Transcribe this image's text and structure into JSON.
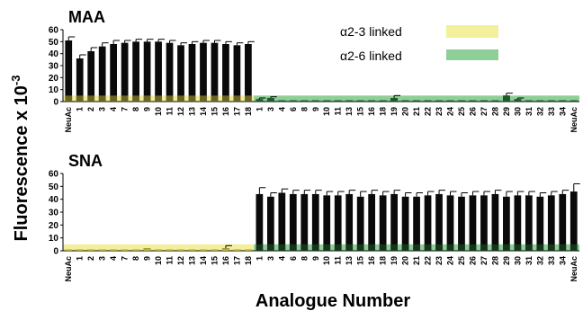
{
  "chart_data": {
    "type": "bar",
    "ylabel": "Fluorescence x 10",
    "ylabel_exp": "-3",
    "xlabel": "Analogue Number",
    "legend": [
      {
        "label": "α2-3 linked",
        "color": "#f3ef9a"
      },
      {
        "label": "α2-6 linked",
        "color": "#8fcf97"
      }
    ],
    "colors": {
      "bar": "#000000",
      "alpha23_band": "#f3ef9a",
      "alpha26_band": "#8fcf97",
      "alpha23_bar": "#b8ad3c",
      "alpha26_bar": "#1f5a2a"
    },
    "ylim": [
      0,
      60
    ],
    "yticks": [
      0,
      10,
      20,
      30,
      40,
      50,
      60
    ],
    "panels": [
      {
        "name": "MAA",
        "groups": [
          {
            "linkage": "α2-3 linked",
            "labels": [
              "NeuAc",
              "1",
              "2",
              "3",
              "4",
              "7",
              "8",
              "9",
              "10",
              "11",
              "12",
              "13",
              "14",
              "15",
              "16",
              "17",
              "18"
            ],
            "values": [
              51,
              36,
              42,
              46,
              48,
              49,
              50,
              50,
              50,
              49,
              47,
              48,
              49,
              49,
              48,
              47,
              48
            ],
            "errors": [
              3,
              3,
              3,
              3,
              3,
              2,
              2,
              2,
              2,
              2,
              2,
              2,
              2,
              2,
              2,
              2,
              2
            ]
          },
          {
            "linkage": "α2-6 linked",
            "labels": [
              "1",
              "3",
              "4",
              "6",
              "8",
              "9",
              "10",
              "11",
              "13",
              "15",
              "16",
              "18",
              "19",
              "20",
              "21",
              "22",
              "23",
              "24",
              "25",
              "26",
              "27",
              "28",
              "29",
              "30",
              "31",
              "32",
              "33",
              "34",
              "NeuAc"
            ],
            "values": [
              2,
              3,
              1,
              1,
              1,
              1,
              1,
              1,
              1,
              1,
              1,
              1,
              3,
              1,
              1,
              1,
              1,
              1,
              1,
              1,
              1,
              1,
              5,
              2,
              1,
              1,
              1,
              1,
              1
            ],
            "errors": [
              1,
              1,
              0,
              0,
              0,
              0,
              0,
              0,
              0,
              0,
              0,
              0,
              2,
              0,
              0,
              0,
              0,
              0,
              0,
              0,
              0,
              0,
              2,
              1,
              0,
              0,
              0,
              0,
              0
            ]
          }
        ],
        "category_labels": [
          "NeuAc",
          "1",
          "2",
          "3",
          "4",
          "7",
          "8",
          "9",
          "10",
          "11",
          "12",
          "13",
          "14",
          "15",
          "16",
          "17",
          "18",
          "1",
          "3",
          "4",
          "6",
          "8",
          "9",
          "10",
          "11",
          "13",
          "15",
          "16",
          "18",
          "19",
          "20",
          "21",
          "22",
          "23",
          "24",
          "25",
          "26",
          "27",
          "28",
          "29",
          "30",
          "31",
          "32",
          "33",
          "34",
          "NeuAc"
        ]
      },
      {
        "name": "SNA",
        "groups": [
          {
            "linkage": "α2-3 linked",
            "labels": [
              "NeuAc",
              "1",
              "2",
              "3",
              "4",
              "7",
              "8",
              "9",
              "10",
              "11",
              "12",
              "13",
              "14",
              "15",
              "16",
              "17",
              "18"
            ],
            "values": [
              1,
              1,
              1,
              1,
              1,
              1,
              1,
              2,
              1,
              1,
              1,
              1,
              1,
              1,
              2,
              1,
              1
            ],
            "errors": [
              0,
              0,
              0,
              0,
              0,
              0,
              0,
              0,
              0,
              0,
              0,
              0,
              0,
              0,
              2,
              0,
              0
            ]
          },
          {
            "linkage": "α2-6 linked",
            "labels": [
              "1",
              "3",
              "4",
              "6",
              "8",
              "9",
              "10",
              "11",
              "13",
              "15",
              "16",
              "18",
              "19",
              "20",
              "21",
              "22",
              "23",
              "24",
              "25",
              "26",
              "27",
              "28",
              "29",
              "30",
              "31",
              "32",
              "33",
              "34",
              "NeuAc"
            ],
            "values": [
              44,
              42,
              45,
              44,
              44,
              44,
              43,
              43,
              44,
              42,
              44,
              43,
              44,
              42,
              42,
              43,
              44,
              43,
              42,
              43,
              43,
              44,
              42,
              43,
              43,
              42,
              43,
              44,
              46
            ],
            "errors": [
              5,
              3,
              3,
              3,
              3,
              3,
              3,
              3,
              3,
              4,
              3,
              3,
              3,
              3,
              3,
              3,
              3,
              3,
              3,
              3,
              3,
              3,
              4,
              3,
              3,
              3,
              3,
              3,
              6
            ]
          }
        ],
        "category_labels": [
          "NeuAc",
          "1",
          "2",
          "3",
          "4",
          "7",
          "8",
          "9",
          "10",
          "11",
          "12",
          "13",
          "14",
          "15",
          "16",
          "17",
          "18",
          "1",
          "3",
          "4",
          "6",
          "8",
          "9",
          "10",
          "11",
          "13",
          "15",
          "16",
          "18",
          "19",
          "20",
          "21",
          "22",
          "23",
          "24",
          "25",
          "26",
          "27",
          "28",
          "29",
          "30",
          "31",
          "32",
          "33",
          "34",
          "NeuAc"
        ]
      }
    ]
  }
}
